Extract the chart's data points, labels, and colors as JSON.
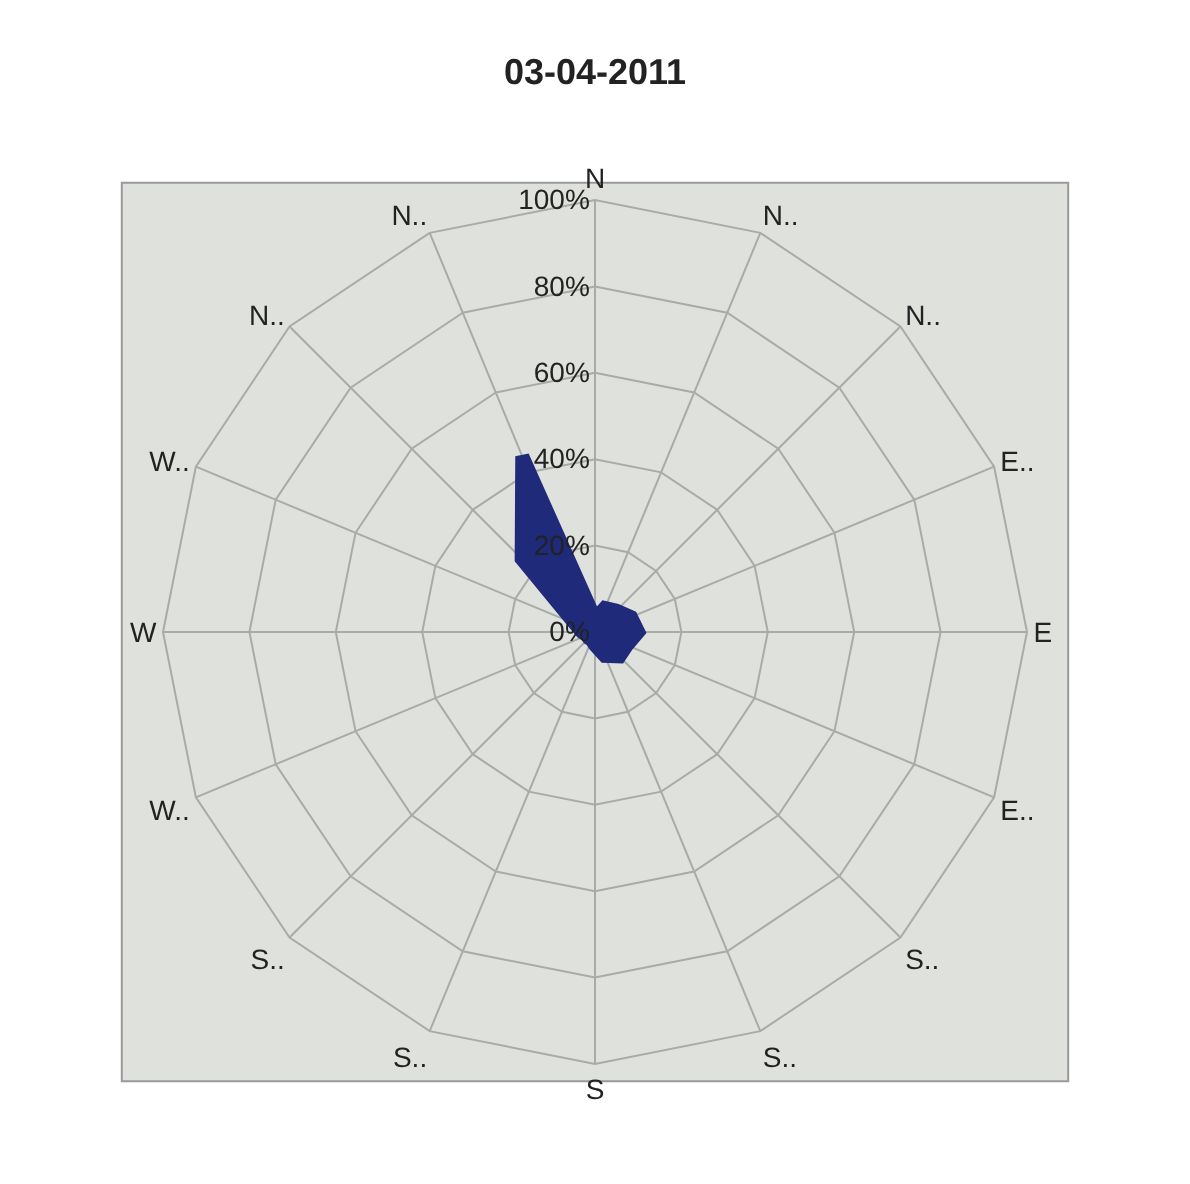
{
  "chart_data": {
    "type": "radar",
    "title": "03-04-2011",
    "categories": [
      "N",
      "N..",
      "N..",
      "E..",
      "E",
      "E..",
      "S..",
      "S..",
      "S",
      "S..",
      "S..",
      "W..",
      "W",
      "W..",
      "N..",
      "N.."
    ],
    "series": [
      {
        "color": "#1f2a7a",
        "values": [
          3,
          6,
          7,
          9,
          10,
          8,
          8,
          6,
          3,
          2,
          2,
          2,
          3,
          5,
          24,
          44
        ]
      }
    ],
    "ylim": [
      0,
      100
    ],
    "yticks": [
      {
        "value": 0,
        "label": "0%"
      },
      {
        "value": 20,
        "label": "20%"
      },
      {
        "value": 40,
        "label": "40%"
      },
      {
        "value": 60,
        "label": "60%"
      },
      {
        "value": 80,
        "label": "80%"
      },
      {
        "value": 100,
        "label": "100%"
      }
    ],
    "grid": true,
    "line_style": "solid",
    "marker": "none"
  }
}
